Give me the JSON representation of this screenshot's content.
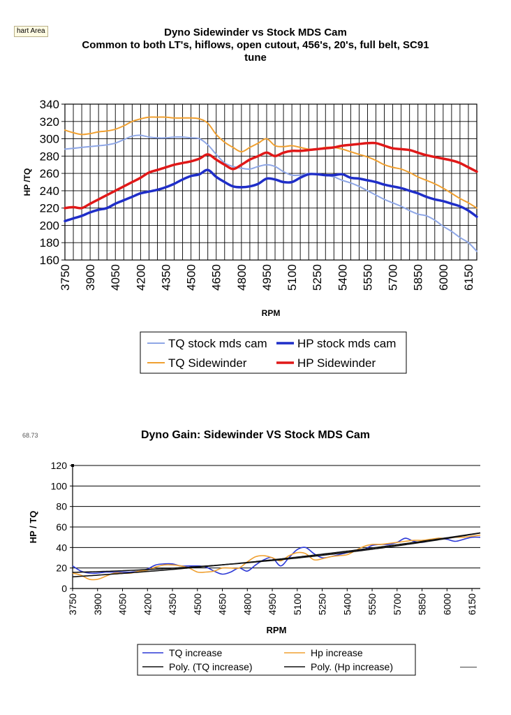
{
  "ui": {
    "chart_area_label": "hart Area",
    "cut_label": "68.73"
  },
  "chart_data": [
    {
      "type": "line",
      "title_lines": [
        "Dyno Sidewinder vs Stock MDS Cam",
        "Common to both  LT's, hiflows, open cutout, 456's, 20's, full belt, SC91",
        "tune"
      ],
      "xlabel": "RPM",
      "ylabel": "HP /TQ",
      "xlim": [
        3750,
        6200
      ],
      "ylim": [
        160,
        340
      ],
      "yticks": [
        160,
        180,
        200,
        220,
        240,
        260,
        280,
        300,
        320,
        340
      ],
      "xtick_labels": [
        "3750",
        "3900",
        "4050",
        "4200",
        "4350",
        "4500",
        "4650",
        "4800",
        "4950",
        "5100",
        "5250",
        "5400",
        "5550",
        "5700",
        "5850",
        "6000",
        "6150"
      ],
      "x_gridline_step": 50,
      "grid": true,
      "legend_placement": "bottom",
      "series": [
        {
          "name": "TQ stock mds cam",
          "color": "#8fa7e6",
          "width": 2,
          "x": [
            3750,
            3800,
            3850,
            3900,
            3950,
            4000,
            4050,
            4100,
            4150,
            4200,
            4250,
            4300,
            4350,
            4400,
            4450,
            4500,
            4550,
            4600,
            4650,
            4700,
            4750,
            4800,
            4850,
            4900,
            4950,
            5000,
            5050,
            5100,
            5150,
            5200,
            5250,
            5300,
            5350,
            5400,
            5450,
            5500,
            5550,
            5600,
            5650,
            5700,
            5750,
            5800,
            5850,
            5900,
            5950,
            6000,
            6050,
            6100,
            6150,
            6200
          ],
          "y": [
            288,
            289,
            290,
            291,
            292,
            293,
            295,
            299,
            303,
            304,
            302,
            301,
            301,
            302,
            302,
            301,
            300,
            293,
            282,
            272,
            268,
            266,
            265,
            268,
            270,
            268,
            262,
            258,
            258,
            260,
            259,
            258,
            256,
            252,
            249,
            245,
            240,
            235,
            230,
            226,
            222,
            217,
            213,
            211,
            206,
            199,
            193,
            186,
            180,
            170
          ]
        },
        {
          "name": "HP stock mds cam",
          "color": "#1f2ec8",
          "width": 3.5,
          "x": [
            3750,
            3800,
            3850,
            3900,
            3950,
            4000,
            4050,
            4100,
            4150,
            4200,
            4250,
            4300,
            4350,
            4400,
            4450,
            4500,
            4550,
            4600,
            4650,
            4700,
            4750,
            4800,
            4850,
            4900,
            4950,
            5000,
            5050,
            5100,
            5150,
            5200,
            5250,
            5300,
            5350,
            5400,
            5450,
            5500,
            5550,
            5600,
            5650,
            5700,
            5750,
            5800,
            5850,
            5900,
            5950,
            6000,
            6050,
            6100,
            6150,
            6200
          ],
          "y": [
            205,
            208,
            211,
            215,
            218,
            220,
            225,
            229,
            233,
            237,
            239,
            241,
            244,
            248,
            253,
            257,
            259,
            264,
            256,
            250,
            245,
            244,
            245,
            248,
            254,
            253,
            250,
            250,
            255,
            259,
            259,
            258,
            258,
            259,
            255,
            254,
            252,
            250,
            247,
            245,
            243,
            240,
            237,
            233,
            230,
            228,
            225,
            222,
            217,
            210
          ]
        },
        {
          "name": "TQ Sidewinder",
          "color": "#f0a030",
          "width": 2,
          "x": [
            3750,
            3800,
            3850,
            3900,
            3950,
            4000,
            4050,
            4100,
            4150,
            4200,
            4250,
            4300,
            4350,
            4400,
            4450,
            4500,
            4550,
            4600,
            4650,
            4700,
            4750,
            4800,
            4850,
            4900,
            4950,
            5000,
            5050,
            5100,
            5150,
            5200,
            5250,
            5300,
            5350,
            5400,
            5450,
            5500,
            5550,
            5600,
            5650,
            5700,
            5750,
            5800,
            5850,
            5900,
            5950,
            6000,
            6050,
            6100,
            6150,
            6200
          ],
          "y": [
            310,
            307,
            305,
            306,
            308,
            309,
            311,
            315,
            320,
            323,
            325,
            325,
            325,
            324,
            324,
            324,
            323,
            318,
            305,
            296,
            290,
            285,
            290,
            295,
            300,
            292,
            291,
            292,
            290,
            288,
            288,
            290,
            290,
            288,
            285,
            282,
            279,
            275,
            270,
            267,
            265,
            261,
            256,
            252,
            248,
            243,
            237,
            231,
            226,
            220
          ]
        },
        {
          "name": "HP Sidewinder",
          "color": "#e01818",
          "width": 3.5,
          "x": [
            3750,
            3800,
            3850,
            3900,
            3950,
            4000,
            4050,
            4100,
            4150,
            4200,
            4250,
            4300,
            4350,
            4400,
            4450,
            4500,
            4550,
            4600,
            4650,
            4700,
            4750,
            4800,
            4850,
            4900,
            4950,
            5000,
            5050,
            5100,
            5150,
            5200,
            5250,
            5300,
            5350,
            5400,
            5450,
            5500,
            5550,
            5600,
            5650,
            5700,
            5750,
            5800,
            5850,
            5900,
            5950,
            6000,
            6050,
            6100,
            6150,
            6200
          ],
          "y": [
            220,
            221,
            220,
            225,
            230,
            235,
            240,
            245,
            250,
            255,
            261,
            264,
            267,
            270,
            272,
            274,
            277,
            282,
            276,
            270,
            265,
            270,
            276,
            280,
            284,
            280,
            284,
            286,
            286,
            287,
            288,
            289,
            290,
            292,
            293,
            294,
            295,
            295,
            292,
            289,
            288,
            287,
            284,
            281,
            279,
            277,
            275,
            272,
            267,
            262
          ]
        }
      ]
    },
    {
      "type": "line",
      "title": "Dyno Gain: Sidewinder VS Stock MDS Cam",
      "xlabel": "RPM",
      "ylabel": "HP / TQ",
      "xlim": [
        3750,
        6200
      ],
      "ylim": [
        0,
        120
      ],
      "yticks": [
        0,
        20,
        40,
        60,
        80,
        100,
        120
      ],
      "xtick_labels": [
        "3750",
        "3900",
        "4050",
        "4200",
        "4350",
        "4500",
        "4650",
        "4800",
        "4950",
        "5100",
        "5250",
        "5400",
        "5550",
        "5700",
        "5850",
        "6000",
        "6150"
      ],
      "grid": "horizontal",
      "legend_placement": "bottom",
      "series": [
        {
          "name": "TQ increase",
          "color": "#2b38d6",
          "width": 1.6,
          "x": [
            3750,
            3800,
            3850,
            3900,
            3950,
            4000,
            4050,
            4100,
            4150,
            4200,
            4250,
            4300,
            4350,
            4400,
            4450,
            4500,
            4550,
            4600,
            4650,
            4700,
            4750,
            4800,
            4850,
            4900,
            4950,
            5000,
            5050,
            5100,
            5150,
            5200,
            5250,
            5300,
            5350,
            5400,
            5450,
            5500,
            5550,
            5600,
            5650,
            5700,
            5750,
            5800,
            5850,
            5900,
            5950,
            6000,
            6050,
            6100,
            6150,
            6200
          ],
          "y": [
            22,
            17,
            15,
            15,
            16,
            16,
            16,
            16,
            17,
            19,
            23,
            24,
            24,
            22,
            22,
            22,
            21,
            17,
            14,
            16,
            20,
            17,
            23,
            28,
            30,
            22,
            30,
            38,
            40,
            34,
            30,
            31,
            33,
            35,
            37,
            38,
            42,
            43,
            43,
            45,
            49,
            46,
            45,
            47,
            49,
            48,
            46,
            48,
            50,
            50
          ]
        },
        {
          "name": "Hp increase",
          "color": "#f0a030",
          "width": 1.6,
          "x": [
            3750,
            3800,
            3850,
            3900,
            3950,
            4000,
            4050,
            4100,
            4150,
            4200,
            4250,
            4300,
            4350,
            4400,
            4450,
            4500,
            4550,
            4600,
            4650,
            4700,
            4750,
            4800,
            4850,
            4900,
            4950,
            5000,
            5050,
            5100,
            5150,
            5200,
            5250,
            5300,
            5350,
            5400,
            5450,
            5500,
            5550,
            5600,
            5650,
            5700,
            5750,
            5800,
            5850,
            5900,
            5950,
            6000,
            6050,
            6100,
            6150,
            6200
          ],
          "y": [
            15,
            13,
            9,
            9,
            12,
            15,
            15,
            15,
            17,
            18,
            21,
            23,
            23,
            22,
            20,
            16,
            16,
            17,
            20,
            20,
            20,
            26,
            31,
            32,
            30,
            27,
            32,
            35,
            34,
            28,
            29,
            31,
            32,
            33,
            37,
            41,
            43,
            43,
            44,
            45,
            46,
            47,
            47,
            48,
            49,
            49,
            50,
            50,
            51,
            52
          ]
        },
        {
          "name": "Poly. (TQ increase)",
          "color": "#111111",
          "width": 1.6,
          "trend_of": "TQ increase"
        },
        {
          "name": "Poly. (Hp increase)",
          "color": "#111111",
          "width": 1.6,
          "trend_of": "Hp increase"
        }
      ]
    }
  ]
}
